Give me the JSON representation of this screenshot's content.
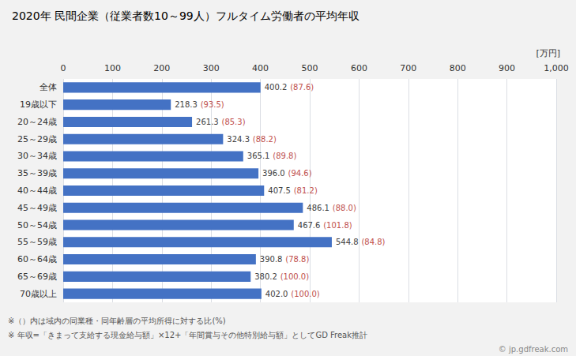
{
  "chart_data": {
    "type": "bar",
    "orientation": "horizontal",
    "title": "2020年 民間企業（従業者数10～99人）フルタイム労働者の平均年収",
    "xlabel": "[万円]",
    "categories": [
      "全体",
      "19歳以下",
      "20～24歳",
      "25～29歳",
      "30～34歳",
      "35～39歳",
      "40～44歳",
      "45～49歳",
      "50～54歳",
      "55～59歳",
      "60～64歳",
      "65～69歳",
      "70歳以上"
    ],
    "values": [
      400.2,
      218.3,
      261.3,
      324.3,
      365.1,
      396.0,
      407.5,
      486.1,
      467.6,
      544.8,
      390.8,
      380.2,
      402.0
    ],
    "value_labels": [
      "400.2",
      "218.3",
      "261.3",
      "324.3",
      "365.1",
      "396.0",
      "407.5",
      "486.1",
      "467.6",
      "544.8",
      "390.8",
      "380.2",
      "402.0"
    ],
    "ratio_labels": [
      "(87.6)",
      "(93.5)",
      "(85.3)",
      "(88.2)",
      "(89.8)",
      "(94.6)",
      "(81.2)",
      "(88.0)",
      "(101.8)",
      "(84.8)",
      "(78.8)",
      "(100.0)",
      "(100.0)"
    ],
    "ratio_color": "#C0504D",
    "color": "#4472C4",
    "data_labels": true,
    "xlim": [
      0,
      1000
    ],
    "xticks": [
      0,
      100,
      200,
      300,
      400,
      500,
      600,
      700,
      800,
      900,
      1000
    ],
    "grid": true,
    "annotations": [
      "※（）内は域内の同業種・同年齢層の平均所得に対する比(%)",
      "※ 年収=「きまって支給する現金給与額」×12+「年間賞与その他特別給与額」としてGD Freak推計",
      "© jp.gdfreak.com"
    ]
  }
}
